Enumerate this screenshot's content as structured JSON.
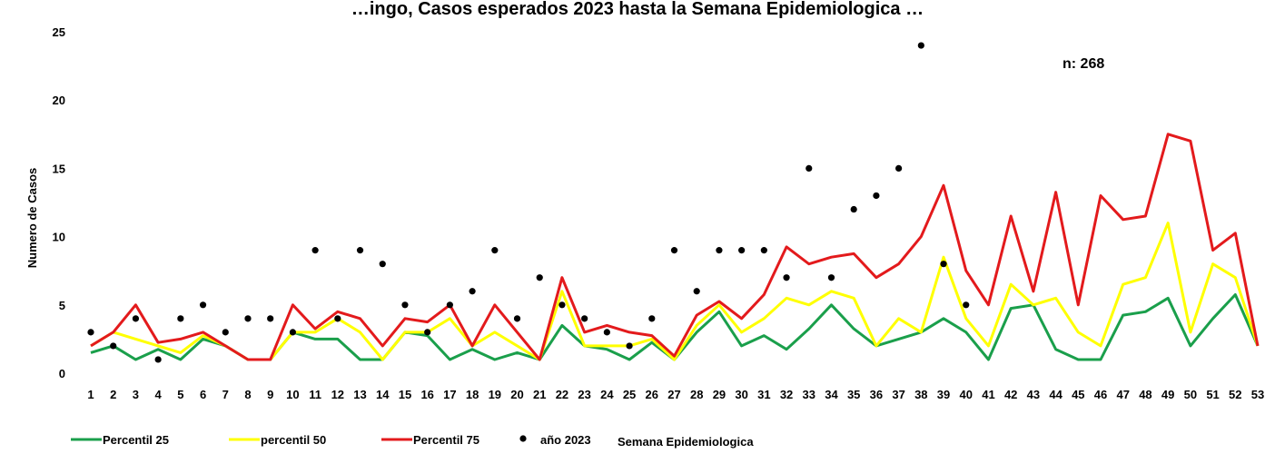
{
  "chart_data": {
    "type": "line",
    "title": "…ingo, Casos esperados 2023 hasta la Semana Epidemiologica …",
    "xlabel": "Semana Epidemiologica",
    "ylabel": "Numero de Casos",
    "ylim": [
      0,
      25
    ],
    "yticks": [
      0,
      5,
      10,
      15,
      20,
      25
    ],
    "categories": [
      "1",
      "2",
      "3",
      "4",
      "5",
      "6",
      "7",
      "8",
      "9",
      "10",
      "11",
      "12",
      "13",
      "14",
      "15",
      "16",
      "17",
      "18",
      "19",
      "20",
      "21",
      "22",
      "23",
      "24",
      "25",
      "26",
      "27",
      "28",
      "29",
      "30",
      "31",
      "32",
      "33",
      "34",
      "35",
      "36",
      "37",
      "38",
      "39",
      "40",
      "41",
      "42",
      "43",
      "44",
      "45",
      "46",
      "47",
      "48",
      "49",
      "50",
      "51",
      "52",
      "53"
    ],
    "annotation": "n: 268",
    "grid": false,
    "legend_position": "bottom-left",
    "series": [
      {
        "name": "Percentil 25",
        "type": "line",
        "color": "#1a9f4b",
        "values": [
          1.5,
          2,
          1,
          1.75,
          1,
          2.5,
          2,
          1,
          1,
          3,
          2.5,
          2.5,
          1,
          1,
          3,
          2.75,
          1,
          1.75,
          1,
          1.5,
          1,
          3.5,
          2,
          1.75,
          1,
          2.25,
          1,
          3,
          4.5,
          2,
          2.75,
          1.75,
          3.25,
          5,
          3.25,
          2,
          2.5,
          3,
          4,
          3,
          1,
          4.75,
          5,
          1.75,
          1,
          1,
          4.25,
          4.5,
          5.5,
          2,
          4,
          5.75,
          2
        ]
      },
      {
        "name": "percentil 50",
        "type": "line",
        "color": "#ffff00",
        "values": [
          2,
          3,
          2.5,
          2,
          1.5,
          2.75,
          2,
          1,
          1,
          3,
          3,
          4,
          3,
          1,
          3,
          3,
          4,
          2,
          3,
          2,
          1,
          6,
          2,
          2,
          2,
          2.5,
          1,
          3.5,
          5,
          3,
          4,
          5.5,
          5,
          6,
          5.5,
          2,
          4,
          3,
          8.5,
          4,
          2,
          6.5,
          5,
          5.5,
          3,
          2,
          6.5,
          7,
          11,
          3,
          8,
          7,
          2
        ]
      },
      {
        "name": "Percentil 75",
        "type": "line",
        "color": "#e31a1c",
        "values": [
          2,
          3,
          5,
          2.25,
          2.5,
          3,
          2,
          1,
          1,
          5,
          3.25,
          4.5,
          4,
          2,
          4,
          3.75,
          5,
          2,
          5,
          3,
          1,
          7,
          3,
          3.5,
          3,
          2.75,
          1.25,
          4.25,
          5.25,
          4,
          5.75,
          9.25,
          8,
          8.5,
          8.75,
          7,
          8,
          10,
          13.75,
          7.5,
          5,
          11.5,
          6,
          13.25,
          5,
          13,
          11.25,
          11.5,
          17.5,
          17,
          9,
          10.25,
          2
        ]
      },
      {
        "name": "año 2023",
        "type": "scatter",
        "color": "#000000",
        "values": [
          3,
          2,
          4,
          1,
          4,
          5,
          3,
          4,
          4,
          3,
          9,
          4,
          9,
          8,
          5,
          3,
          5,
          6,
          9,
          4,
          7,
          5,
          4,
          3,
          2,
          4,
          9,
          6,
          9,
          9,
          9,
          7,
          15,
          7,
          12,
          13,
          15,
          24,
          8,
          5,
          null,
          null,
          null,
          null,
          null,
          null,
          null,
          null,
          null,
          null,
          null,
          null,
          null
        ]
      }
    ]
  }
}
